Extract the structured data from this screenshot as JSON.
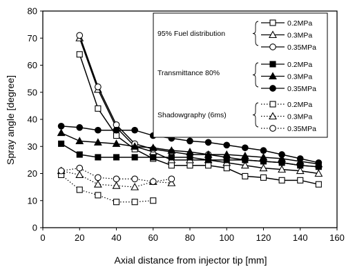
{
  "chart_data": {
    "type": "line",
    "xlabel": "Axial distance from injector tip [mm]",
    "ylabel": "Spray angle [degree]",
    "xlim": [
      0,
      160
    ],
    "ylim": [
      0,
      80
    ],
    "xticks": [
      0,
      20,
      40,
      60,
      80,
      100,
      120,
      140,
      160
    ],
    "yticks": [
      0,
      10,
      20,
      30,
      40,
      50,
      60,
      70,
      80
    ],
    "grid": false,
    "legend_position": "top-right",
    "legend_groups": [
      {
        "title": "95% Fuel distribution",
        "entries": [
          0,
          1,
          2
        ]
      },
      {
        "title": "Transmittance 80%",
        "entries": [
          3,
          4,
          5
        ]
      },
      {
        "title": "Shadowgraphy (6ms)",
        "entries": [
          6,
          7,
          8
        ]
      }
    ],
    "series": [
      {
        "name": "0.2MPa",
        "marker": "square-open",
        "line": "solid",
        "x": [
          20,
          30,
          40,
          50,
          60,
          70,
          80,
          90,
          100,
          110,
          120,
          130,
          140,
          150
        ],
        "y": [
          64,
          44,
          34,
          29,
          25.5,
          23,
          23,
          23,
          22,
          19,
          18.5,
          17.5,
          17.5,
          16
        ]
      },
      {
        "name": "0.3MPa",
        "marker": "triangle-open",
        "line": "solid",
        "x": [
          20,
          30,
          40,
          50,
          60,
          70,
          80,
          90,
          100,
          110,
          120,
          130,
          140,
          150
        ],
        "y": [
          70,
          51,
          37,
          30,
          28,
          25,
          25,
          25,
          24,
          23,
          22,
          21.5,
          21,
          20
        ]
      },
      {
        "name": "0.35MPa",
        "marker": "circle-open",
        "line": "solid",
        "x": [
          20,
          30,
          40,
          50,
          60,
          70,
          80,
          90,
          100,
          110,
          120,
          130,
          140,
          150
        ],
        "y": [
          71,
          52,
          38,
          31,
          29,
          28,
          27,
          27,
          26,
          25,
          24.5,
          24,
          23,
          22.5
        ]
      },
      {
        "name": "0.2MPa",
        "marker": "square-filled",
        "line": "solid",
        "x": [
          10,
          20,
          30,
          40,
          50,
          60,
          70,
          80,
          90,
          100,
          110,
          120,
          130,
          140,
          150
        ],
        "y": [
          31,
          27,
          26,
          26,
          26,
          26,
          26,
          26,
          25,
          25,
          25,
          24.5,
          24,
          23,
          22.5
        ]
      },
      {
        "name": "0.3MPa",
        "marker": "triangle-filled",
        "line": "solid",
        "x": [
          10,
          20,
          30,
          40,
          50,
          60,
          70,
          80,
          90,
          100,
          110,
          120,
          130,
          140,
          150
        ],
        "y": [
          35,
          32,
          31.5,
          31,
          30,
          29.5,
          28.5,
          28,
          27,
          27,
          26.5,
          26,
          25.5,
          24.5,
          23.5
        ]
      },
      {
        "name": "0.35MPa",
        "marker": "circle-filled",
        "line": "solid",
        "x": [
          10,
          20,
          30,
          40,
          50,
          60,
          70,
          80,
          90,
          100,
          110,
          120,
          130,
          140,
          150
        ],
        "y": [
          37.5,
          37,
          36,
          36,
          36,
          34,
          33,
          32,
          31.5,
          30.5,
          29.5,
          28.5,
          27,
          25.5,
          24
        ]
      },
      {
        "name": "0.2MPa",
        "marker": "square-open",
        "line": "dotted",
        "x": [
          10,
          20,
          30,
          40,
          50,
          60
        ],
        "y": [
          19.5,
          14,
          12,
          9.5,
          9.5,
          10
        ]
      },
      {
        "name": "0.3MPa",
        "marker": "triangle-open",
        "line": "dotted",
        "x": [
          10,
          20,
          30,
          40,
          50,
          60,
          70
        ],
        "y": [
          21,
          19.5,
          16,
          15.5,
          15,
          17,
          16.5
        ]
      },
      {
        "name": "0.35MPa",
        "marker": "circle-open",
        "line": "dotted",
        "x": [
          10,
          20,
          30,
          40,
          50,
          60,
          70
        ],
        "y": [
          21,
          22,
          18.5,
          18,
          18,
          17,
          18
        ]
      }
    ]
  }
}
